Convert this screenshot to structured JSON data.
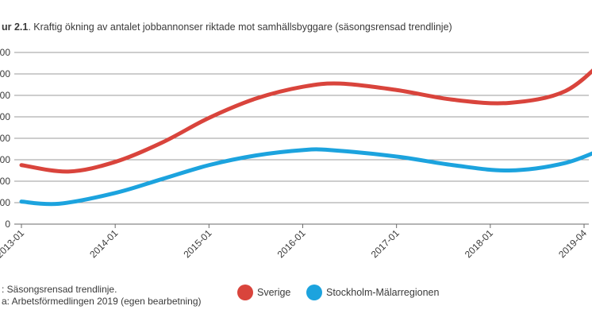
{
  "chart_data": {
    "type": "line",
    "title_prefix": "ur 2.1",
    "title_text": ". Kraftig ökning av antalet jobbannonser riktade mot samhällsbyggare (säsongsrensad trendlinje)",
    "x_categories": [
      "2013-01",
      "2014-01",
      "2015-01",
      "2016-01",
      "2017-01",
      "2018-01",
      "2019-04"
    ],
    "y_ticks": [
      "00",
      "00",
      "00",
      "00",
      "00",
      "00",
      "00",
      "00",
      "0"
    ],
    "ylim": [
      0,
      8
    ],
    "grid": true,
    "legend_position": "bottom-center",
    "series": [
      {
        "name": "Sverige",
        "color": "#d9443c",
        "points": [
          [
            0.0,
            2.75
          ],
          [
            0.5,
            2.45
          ],
          [
            1.0,
            2.9
          ],
          [
            1.5,
            3.8
          ],
          [
            2.0,
            4.95
          ],
          [
            2.5,
            5.85
          ],
          [
            3.0,
            6.4
          ],
          [
            3.4,
            6.55
          ],
          [
            4.0,
            6.25
          ],
          [
            4.6,
            5.8
          ],
          [
            5.2,
            5.65
          ],
          [
            5.8,
            6.2
          ],
          [
            6.25,
            7.8
          ]
        ]
      },
      {
        "name": "Stockholm-Mälarregionen",
        "color": "#1ca3de",
        "points": [
          [
            0.0,
            1.05
          ],
          [
            0.4,
            0.95
          ],
          [
            1.0,
            1.45
          ],
          [
            1.5,
            2.1
          ],
          [
            2.0,
            2.75
          ],
          [
            2.5,
            3.2
          ],
          [
            3.0,
            3.45
          ],
          [
            3.3,
            3.45
          ],
          [
            4.0,
            3.15
          ],
          [
            4.6,
            2.75
          ],
          [
            5.2,
            2.5
          ],
          [
            5.8,
            2.85
          ],
          [
            6.25,
            3.6
          ]
        ]
      }
    ],
    "notes": [
      ": Säsongsrensad trendlinje.",
      "a: Arbetsförmedlingen 2019 (egen bearbetning)"
    ]
  }
}
